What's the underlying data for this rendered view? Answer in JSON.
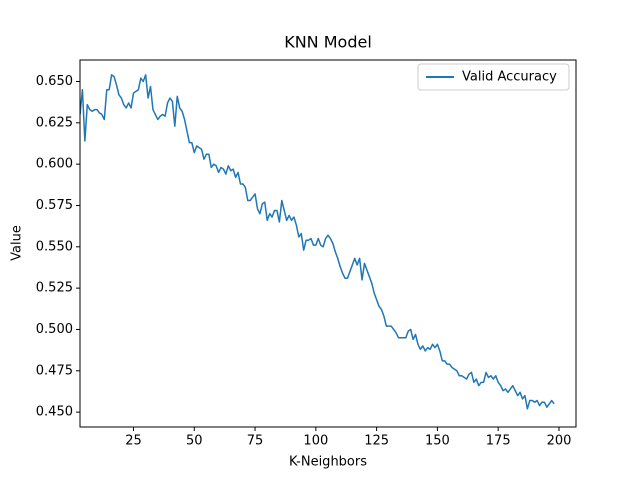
{
  "chart_data": {
    "type": "line",
    "title": "KNN Model",
    "x_label": "K-Neighbors",
    "y_label": "Value",
    "xlim": [
      3,
      207
    ],
    "ylim": [
      0.441,
      0.663
    ],
    "xticks": [
      25,
      50,
      75,
      100,
      125,
      150,
      175,
      200
    ],
    "yticks": [
      {
        "value": 0.45,
        "label": "0.450"
      },
      {
        "value": 0.475,
        "label": "0.475"
      },
      {
        "value": 0.5,
        "label": "0.500"
      },
      {
        "value": 0.525,
        "label": "0.525"
      },
      {
        "value": 0.55,
        "label": "0.550"
      },
      {
        "value": 0.575,
        "label": "0.575"
      },
      {
        "value": 0.6,
        "label": "0.600"
      },
      {
        "value": 0.625,
        "label": "0.625"
      },
      {
        "value": 0.65,
        "label": "0.650"
      }
    ],
    "legend": "upper right",
    "grid": false,
    "x": [
      3,
      4,
      5,
      6,
      7,
      8,
      9,
      10,
      11,
      12,
      13,
      14,
      15,
      16,
      17,
      18,
      19,
      20,
      21,
      22,
      23,
      24,
      25,
      26,
      27,
      28,
      29,
      30,
      31,
      32,
      33,
      34,
      35,
      36,
      37,
      38,
      39,
      40,
      41,
      42,
      43,
      44,
      45,
      46,
      47,
      48,
      49,
      50,
      51,
      52,
      53,
      54,
      55,
      56,
      57,
      58,
      59,
      60,
      61,
      62,
      63,
      64,
      65,
      66,
      67,
      68,
      69,
      70,
      71,
      72,
      73,
      74,
      75,
      76,
      77,
      78,
      79,
      80,
      81,
      82,
      83,
      84,
      85,
      86,
      87,
      88,
      89,
      90,
      91,
      92,
      93,
      94,
      95,
      96,
      97,
      98,
      99,
      100,
      101,
      102,
      103,
      104,
      105,
      106,
      107,
      108,
      109,
      110,
      111,
      112,
      113,
      114,
      115,
      116,
      117,
      118,
      119,
      120,
      121,
      122,
      123,
      124,
      125,
      126,
      127,
      128,
      129,
      130,
      131,
      132,
      133,
      134,
      135,
      136,
      137,
      138,
      139,
      140,
      141,
      142,
      143,
      144,
      145,
      146,
      147,
      148,
      149,
      150,
      151,
      152,
      153,
      154,
      155,
      156,
      157,
      158,
      159,
      160,
      161,
      162,
      163,
      164,
      165,
      166,
      167,
      168,
      169,
      170,
      171,
      172,
      173,
      174,
      175,
      176,
      177,
      178,
      179,
      180,
      181,
      182,
      183,
      184,
      185,
      186,
      187,
      188,
      189,
      190,
      191,
      192,
      193,
      194,
      195,
      196,
      197,
      198
    ],
    "series": [
      {
        "name": "Valid Accuracy",
        "color": "#1f77b4",
        "values": [
          0.63,
          0.645,
          0.614,
          0.636,
          0.633,
          0.632,
          0.633,
          0.633,
          0.631,
          0.63,
          0.627,
          0.645,
          0.645,
          0.654,
          0.653,
          0.648,
          0.642,
          0.64,
          0.636,
          0.634,
          0.637,
          0.634,
          0.643,
          0.644,
          0.645,
          0.652,
          0.65,
          0.654,
          0.64,
          0.647,
          0.633,
          0.63,
          0.627,
          0.629,
          0.63,
          0.629,
          0.637,
          0.64,
          0.638,
          0.623,
          0.641,
          0.634,
          0.632,
          0.627,
          0.62,
          0.613,
          0.613,
          0.607,
          0.611,
          0.61,
          0.609,
          0.603,
          0.606,
          0.606,
          0.598,
          0.6,
          0.599,
          0.595,
          0.598,
          0.597,
          0.594,
          0.599,
          0.596,
          0.597,
          0.592,
          0.595,
          0.588,
          0.588,
          0.586,
          0.578,
          0.578,
          0.58,
          0.582,
          0.573,
          0.57,
          0.576,
          0.577,
          0.566,
          0.57,
          0.568,
          0.572,
          0.572,
          0.565,
          0.578,
          0.572,
          0.566,
          0.569,
          0.566,
          0.568,
          0.563,
          0.556,
          0.558,
          0.548,
          0.554,
          0.554,
          0.555,
          0.551,
          0.551,
          0.555,
          0.551,
          0.55,
          0.555,
          0.557,
          0.555,
          0.552,
          0.547,
          0.543,
          0.538,
          0.534,
          0.531,
          0.531,
          0.535,
          0.539,
          0.543,
          0.539,
          0.543,
          0.53,
          0.54,
          0.536,
          0.532,
          0.528,
          0.522,
          0.518,
          0.514,
          0.512,
          0.508,
          0.502,
          0.502,
          0.502,
          0.5,
          0.498,
          0.495,
          0.495,
          0.495,
          0.495,
          0.499,
          0.5,
          0.494,
          0.497,
          0.491,
          0.488,
          0.49,
          0.487,
          0.489,
          0.488,
          0.491,
          0.489,
          0.491,
          0.487,
          0.481,
          0.481,
          0.479,
          0.479,
          0.477,
          0.476,
          0.475,
          0.472,
          0.472,
          0.471,
          0.47,
          0.473,
          0.474,
          0.468,
          0.47,
          0.466,
          0.468,
          0.468,
          0.474,
          0.471,
          0.472,
          0.47,
          0.472,
          0.468,
          0.466,
          0.463,
          0.464,
          0.462,
          0.464,
          0.466,
          0.463,
          0.46,
          0.462,
          0.458,
          0.46,
          0.452,
          0.457,
          0.457,
          0.456,
          0.457,
          0.454,
          0.456,
          0.456,
          0.453,
          0.455,
          0.457,
          0.455
        ]
      }
    ]
  }
}
